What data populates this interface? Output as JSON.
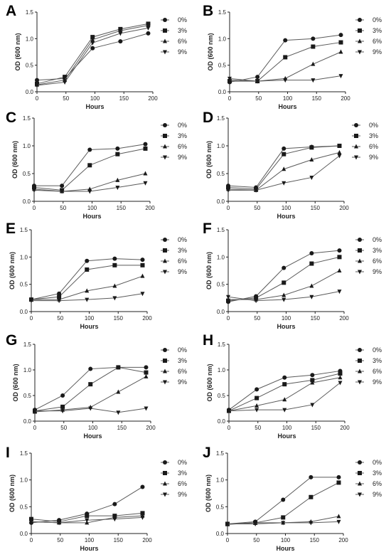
{
  "chart_data": [
    {
      "panel": "A",
      "type": "line",
      "xlabel": "Hours",
      "ylabel": "OD (600 nm)",
      "xlim": [
        0,
        200
      ],
      "ylim": [
        0,
        1.5
      ],
      "xticks": [
        "0",
        "50",
        "100",
        "150",
        "200"
      ],
      "yticks": [
        "0.0",
        "0.5",
        "1.0",
        "1.5"
      ],
      "legend_position": "right",
      "grid": false,
      "x": [
        0,
        48,
        96,
        144,
        192
      ],
      "series": [
        {
          "name": "0%",
          "marker": "circle",
          "values": [
            0.22,
            0.25,
            0.82,
            0.95,
            1.1
          ]
        },
        {
          "name": "3%",
          "marker": "square",
          "values": [
            0.15,
            0.28,
            1.03,
            1.18,
            1.28
          ]
        },
        {
          "name": "6%",
          "marker": "triangle-up",
          "values": [
            0.13,
            0.22,
            0.98,
            1.15,
            1.25
          ]
        },
        {
          "name": "9%",
          "marker": "triangle-down",
          "values": [
            0.12,
            0.18,
            0.92,
            1.1,
            1.2
          ]
        }
      ]
    },
    {
      "panel": "B",
      "type": "line",
      "xlabel": "Hours",
      "ylabel": "OD (600 nm)",
      "xlim": [
        0,
        200
      ],
      "ylim": [
        0,
        1.5
      ],
      "xticks": [
        "0",
        "50",
        "100",
        "150",
        "200"
      ],
      "yticks": [
        "0.0",
        "0.5",
        "1.0",
        "1.5"
      ],
      "legend_position": "right",
      "grid": false,
      "x": [
        0,
        48,
        96,
        144,
        192
      ],
      "series": [
        {
          "name": "0%",
          "marker": "circle",
          "values": [
            0.18,
            0.28,
            0.97,
            1.0,
            1.07
          ]
        },
        {
          "name": "3%",
          "marker": "square",
          "values": [
            0.2,
            0.2,
            0.65,
            0.85,
            0.93
          ]
        },
        {
          "name": "6%",
          "marker": "triangle-up",
          "values": [
            0.22,
            0.2,
            0.25,
            0.52,
            0.75
          ]
        },
        {
          "name": "9%",
          "marker": "triangle-down",
          "values": [
            0.25,
            0.2,
            0.22,
            0.22,
            0.3
          ]
        }
      ]
    },
    {
      "panel": "C",
      "type": "line",
      "xlabel": "Hours",
      "ylabel": "OD (600 nm)",
      "xlim": [
        0,
        200
      ],
      "ylim": [
        0,
        1.5
      ],
      "xticks": [
        "0",
        "50",
        "100",
        "150",
        "200"
      ],
      "yticks": [
        "0.0",
        "0.5",
        "1.0",
        "1.5"
      ],
      "legend_position": "right",
      "grid": false,
      "x": [
        0,
        48,
        96,
        144,
        192
      ],
      "series": [
        {
          "name": "0%",
          "marker": "circle",
          "values": [
            0.28,
            0.28,
            0.93,
            0.95,
            1.03
          ]
        },
        {
          "name": "3%",
          "marker": "square",
          "values": [
            0.25,
            0.2,
            0.65,
            0.85,
            0.95
          ]
        },
        {
          "name": "6%",
          "marker": "triangle-up",
          "values": [
            0.22,
            0.18,
            0.22,
            0.38,
            0.5
          ]
        },
        {
          "name": "9%",
          "marker": "triangle-down",
          "values": [
            0.2,
            0.18,
            0.18,
            0.25,
            0.33
          ]
        }
      ]
    },
    {
      "panel": "D",
      "type": "line",
      "xlabel": "Hours",
      "ylabel": "OD (600 nm)",
      "xlim": [
        0,
        200
      ],
      "ylim": [
        0,
        1.5
      ],
      "xticks": [
        "0",
        "50",
        "100",
        "150",
        "200"
      ],
      "yticks": [
        "0.0",
        "0.5",
        "1.0",
        "1.5"
      ],
      "legend_position": "right",
      "grid": false,
      "x": [
        0,
        48,
        96,
        144,
        192
      ],
      "series": [
        {
          "name": "0%",
          "marker": "circle",
          "values": [
            0.28,
            0.25,
            0.95,
            0.98,
            1.0
          ]
        },
        {
          "name": "3%",
          "marker": "square",
          "values": [
            0.25,
            0.22,
            0.85,
            0.97,
            1.0
          ]
        },
        {
          "name": "6%",
          "marker": "triangle-up",
          "values": [
            0.22,
            0.2,
            0.58,
            0.75,
            0.88
          ]
        },
        {
          "name": "9%",
          "marker": "triangle-down",
          "values": [
            0.2,
            0.2,
            0.33,
            0.43,
            0.82
          ]
        }
      ]
    },
    {
      "panel": "E",
      "type": "line",
      "xlabel": "Hours",
      "ylabel": "OD (600 nm)",
      "xlim": [
        0,
        200
      ],
      "ylim": [
        0,
        1.5
      ],
      "xticks": [
        "0",
        "50",
        "100",
        "150",
        "200"
      ],
      "yticks": [
        "0.0",
        "0.5",
        "1.0",
        "1.5"
      ],
      "legend_position": "right",
      "grid": false,
      "x": [
        0,
        48,
        96,
        144,
        192
      ],
      "series": [
        {
          "name": "0%",
          "marker": "circle",
          "values": [
            0.22,
            0.33,
            0.93,
            0.97,
            0.95
          ]
        },
        {
          "name": "3%",
          "marker": "square",
          "values": [
            0.22,
            0.27,
            0.77,
            0.85,
            0.85
          ]
        },
        {
          "name": "6%",
          "marker": "triangle-up",
          "values": [
            0.22,
            0.22,
            0.38,
            0.47,
            0.65
          ]
        },
        {
          "name": "9%",
          "marker": "triangle-down",
          "values": [
            0.2,
            0.2,
            0.22,
            0.25,
            0.33
          ]
        }
      ]
    },
    {
      "panel": "F",
      "type": "line",
      "xlabel": "Hours",
      "ylabel": "OD (600 nm)",
      "xlim": [
        0,
        200
      ],
      "ylim": [
        0,
        1.5
      ],
      "xticks": [
        "0",
        "50",
        "100",
        "150",
        "200"
      ],
      "yticks": [
        "0.0",
        "0.5",
        "1.0",
        "1.5"
      ],
      "legend_position": "right",
      "grid": false,
      "x": [
        0,
        48,
        96,
        144,
        192
      ],
      "series": [
        {
          "name": "0%",
          "marker": "circle",
          "values": [
            0.18,
            0.28,
            0.8,
            1.07,
            1.12
          ]
        },
        {
          "name": "3%",
          "marker": "square",
          "values": [
            0.2,
            0.25,
            0.53,
            0.88,
            1.0
          ]
        },
        {
          "name": "6%",
          "marker": "triangle-up",
          "values": [
            0.22,
            0.22,
            0.3,
            0.47,
            0.75
          ]
        },
        {
          "name": "9%",
          "marker": "triangle-down",
          "values": [
            0.27,
            0.2,
            0.22,
            0.27,
            0.37
          ]
        }
      ]
    },
    {
      "panel": "G",
      "type": "line",
      "xlabel": "Hours",
      "ylabel": "OD (600 nm)",
      "xlim": [
        0,
        200
      ],
      "ylim": [
        0,
        1.5
      ],
      "xticks": [
        "0",
        "50",
        "100",
        "150",
        "200"
      ],
      "yticks": [
        "0.0",
        "0.5",
        "1.0",
        "1.5"
      ],
      "legend_position": "right",
      "grid": false,
      "x": [
        0,
        48,
        96,
        144,
        192
      ],
      "series": [
        {
          "name": "0%",
          "marker": "circle",
          "values": [
            0.22,
            0.5,
            1.02,
            1.05,
            1.05
          ]
        },
        {
          "name": "3%",
          "marker": "square",
          "values": [
            0.2,
            0.28,
            0.72,
            1.05,
            0.95
          ]
        },
        {
          "name": "6%",
          "marker": "triangle-up",
          "values": [
            0.18,
            0.22,
            0.27,
            0.57,
            0.87
          ]
        },
        {
          "name": "9%",
          "marker": "triangle-down",
          "values": [
            0.2,
            0.2,
            0.25,
            0.17,
            0.25
          ]
        }
      ]
    },
    {
      "panel": "H",
      "type": "line",
      "xlabel": "Hours",
      "ylabel": "OD (600 nm)",
      "xlim": [
        0,
        200
      ],
      "ylim": [
        0,
        1.5
      ],
      "xticks": [
        "0",
        "50",
        "100",
        "150",
        "200"
      ],
      "yticks": [
        "0.0",
        "0.5",
        "1.0",
        "1.5"
      ],
      "legend_position": "right",
      "grid": false,
      "x": [
        0,
        48,
        96,
        144,
        192
      ],
      "series": [
        {
          "name": "0%",
          "marker": "circle",
          "values": [
            0.22,
            0.62,
            0.85,
            0.9,
            0.98
          ]
        },
        {
          "name": "3%",
          "marker": "square",
          "values": [
            0.2,
            0.45,
            0.72,
            0.8,
            0.93
          ]
        },
        {
          "name": "6%",
          "marker": "triangle-up",
          "values": [
            0.2,
            0.3,
            0.42,
            0.75,
            0.85
          ]
        },
        {
          "name": "9%",
          "marker": "triangle-down",
          "values": [
            0.2,
            0.22,
            0.22,
            0.32,
            0.75
          ]
        }
      ]
    },
    {
      "panel": "I",
      "type": "line",
      "xlabel": "Hours",
      "ylabel": "OD (600 nm)",
      "xlim": [
        0,
        200
      ],
      "ylim": [
        0,
        1.5
      ],
      "xticks": [
        "0",
        "50",
        "100",
        "150",
        "200"
      ],
      "yticks": [
        "0.0",
        "0.5",
        "1.0",
        "1.5"
      ],
      "legend_position": "right",
      "grid": false,
      "x": [
        0,
        48,
        96,
        144,
        192
      ],
      "series": [
        {
          "name": "0%",
          "marker": "circle",
          "values": [
            0.2,
            0.25,
            0.37,
            0.55,
            0.87
          ]
        },
        {
          "name": "3%",
          "marker": "square",
          "values": [
            0.27,
            0.22,
            0.33,
            0.33,
            0.38
          ]
        },
        {
          "name": "6%",
          "marker": "triangle-up",
          "values": [
            0.22,
            0.2,
            0.2,
            0.3,
            0.33
          ]
        },
        {
          "name": "9%",
          "marker": "triangle-down",
          "values": [
            0.22,
            0.2,
            0.25,
            0.27,
            0.3
          ]
        }
      ]
    },
    {
      "panel": "J",
      "type": "line",
      "xlabel": "Hours",
      "ylabel": "OD (600 nm)",
      "xlim": [
        0,
        200
      ],
      "ylim": [
        0,
        1.5
      ],
      "xticks": [
        "0",
        "50",
        "100",
        "150",
        "200"
      ],
      "yticks": [
        "0.0",
        "0.5",
        "1.0",
        "1.5"
      ],
      "legend_position": "right",
      "grid": false,
      "x": [
        0,
        48,
        96,
        144,
        192
      ],
      "series": [
        {
          "name": "0%",
          "marker": "circle",
          "values": [
            0.18,
            0.22,
            0.63,
            1.05,
            1.05
          ]
        },
        {
          "name": "3%",
          "marker": "square",
          "values": [
            0.18,
            0.2,
            0.3,
            0.68,
            0.95
          ]
        },
        {
          "name": "6%",
          "marker": "triangle-up",
          "values": [
            0.17,
            0.2,
            0.2,
            0.22,
            0.32
          ]
        },
        {
          "name": "9%",
          "marker": "triangle-down",
          "values": [
            0.18,
            0.18,
            0.2,
            0.2,
            0.22
          ]
        }
      ]
    }
  ],
  "colors": {
    "line": "#5a5a5a",
    "marker": "#1a1a1a",
    "axis": "#222222"
  }
}
